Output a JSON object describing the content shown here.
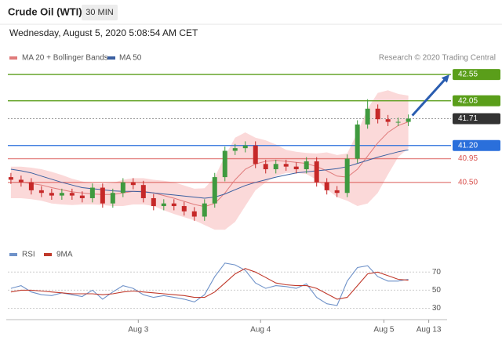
{
  "header": {
    "title": "Crude Oil (WTI)",
    "interval": "30 MIN",
    "timestamp": "Wednesday, August 5, 2020 5:08:54 AM CET",
    "source": "Research © 2020 Trading Central"
  },
  "chart_data": [
    {
      "type": "candlestick",
      "x": [
        0,
        1,
        2,
        3,
        4,
        5,
        6,
        7,
        8,
        9,
        10,
        11,
        12,
        13,
        14,
        15,
        16,
        17,
        18,
        19,
        20,
        21,
        22,
        23,
        24,
        25,
        26,
        27,
        28,
        29,
        30,
        31,
        32,
        33,
        34,
        35,
        36,
        37,
        38,
        39
      ],
      "open": [
        40.6,
        40.55,
        40.5,
        40.35,
        40.3,
        40.25,
        40.3,
        40.25,
        40.2,
        40.4,
        40.1,
        40.3,
        40.5,
        40.45,
        40.2,
        40.05,
        40.1,
        40.05,
        39.95,
        39.85,
        40.1,
        40.6,
        41.1,
        41.15,
        41.2,
        40.85,
        40.75,
        40.85,
        40.8,
        40.75,
        40.9,
        40.5,
        40.35,
        40.3,
        40.95,
        41.6,
        41.9,
        41.7,
        41.65,
        41.65
      ],
      "high": [
        40.68,
        40.63,
        40.58,
        40.43,
        40.38,
        40.38,
        40.38,
        40.33,
        40.48,
        40.48,
        40.38,
        40.58,
        40.58,
        40.53,
        40.28,
        40.18,
        40.18,
        40.13,
        40.03,
        40.18,
        40.68,
        41.18,
        41.23,
        41.28,
        41.28,
        40.93,
        40.93,
        40.93,
        40.88,
        40.98,
        40.98,
        40.58,
        40.43,
        41.03,
        41.68,
        42.08,
        41.98,
        41.78,
        41.73,
        41.79
      ],
      "low": [
        40.47,
        40.42,
        40.27,
        40.22,
        40.17,
        40.17,
        40.17,
        40.12,
        40.12,
        40.02,
        40.02,
        40.22,
        40.37,
        40.12,
        39.97,
        39.97,
        39.97,
        39.87,
        39.77,
        39.77,
        40.02,
        40.52,
        41.02,
        41.07,
        40.77,
        40.67,
        40.67,
        40.72,
        40.67,
        40.67,
        40.42,
        40.27,
        40.22,
        40.22,
        40.87,
        41.52,
        41.62,
        41.57,
        41.57,
        41.57
      ],
      "close": [
        40.55,
        40.5,
        40.35,
        40.3,
        40.25,
        40.3,
        40.25,
        40.2,
        40.4,
        40.1,
        40.3,
        40.5,
        40.45,
        40.2,
        40.05,
        40.1,
        40.05,
        39.95,
        39.85,
        40.1,
        40.6,
        41.1,
        41.15,
        41.2,
        40.85,
        40.75,
        40.85,
        40.8,
        40.75,
        40.9,
        40.5,
        40.35,
        40.3,
        40.95,
        41.6,
        41.9,
        41.7,
        41.65,
        41.65,
        41.71
      ],
      "up_color": "#3f9a3f",
      "down_color": "#c62828",
      "series": [
        {
          "name": "MA 20 + Bollinger Bands",
          "color": "#e07b7b",
          "band_color": "#fbd9d9",
          "values": [
            40.5,
            40.5,
            40.48,
            40.45,
            40.4,
            40.36,
            40.32,
            40.3,
            40.28,
            40.27,
            40.27,
            40.3,
            40.33,
            40.33,
            40.3,
            40.25,
            40.2,
            40.14,
            40.08,
            40.04,
            40.1,
            40.3,
            40.55,
            40.75,
            40.85,
            40.9,
            40.92,
            40.9,
            40.88,
            40.86,
            40.8,
            40.72,
            40.62,
            40.6,
            40.75,
            41.0,
            41.25,
            41.45,
            41.58,
            41.65
          ],
          "upper": [
            40.8,
            40.8,
            40.78,
            40.75,
            40.7,
            40.64,
            40.57,
            40.52,
            40.48,
            40.47,
            40.49,
            40.55,
            40.58,
            40.58,
            40.55,
            40.53,
            40.5,
            40.44,
            40.38,
            40.39,
            40.6,
            41.0,
            41.35,
            41.45,
            41.35,
            41.3,
            41.22,
            41.12,
            41.08,
            41.06,
            41.05,
            41.07,
            41.02,
            41.05,
            41.45,
            41.9,
            42.2,
            42.25,
            42.18,
            42.15
          ],
          "lower": [
            40.2,
            40.2,
            40.18,
            40.15,
            40.1,
            40.08,
            40.07,
            40.08,
            40.08,
            40.07,
            40.05,
            40.05,
            40.08,
            40.08,
            40.05,
            39.97,
            39.9,
            39.84,
            39.78,
            39.69,
            39.6,
            39.6,
            39.75,
            40.05,
            40.35,
            40.5,
            40.62,
            40.68,
            40.68,
            40.66,
            40.55,
            40.37,
            40.22,
            40.15,
            40.05,
            40.1,
            40.3,
            40.65,
            40.98,
            41.15
          ]
        },
        {
          "name": "MA 50",
          "color": "#3a5fa0",
          "values": [
            40.75,
            40.72,
            40.68,
            40.62,
            40.56,
            40.5,
            40.45,
            40.4,
            40.38,
            40.36,
            40.34,
            40.33,
            40.33,
            40.32,
            40.3,
            40.28,
            40.26,
            40.24,
            40.22,
            40.2,
            40.22,
            40.28,
            40.36,
            40.44,
            40.5,
            40.55,
            40.6,
            40.64,
            40.68,
            40.7,
            40.72,
            40.74,
            40.76,
            40.8,
            40.86,
            40.92,
            40.98,
            41.03,
            41.08,
            41.12
          ]
        }
      ],
      "levels": [
        {
          "value": 42.55,
          "label": "42.55",
          "color": "#5a9e1a",
          "style": "box",
          "line": "solid"
        },
        {
          "value": 42.05,
          "label": "42.05",
          "color": "#5a9e1a",
          "style": "box",
          "line": "solid"
        },
        {
          "value": 41.71,
          "label": "41.71",
          "color": "#333333",
          "style": "box",
          "line": "dotted"
        },
        {
          "value": 41.2,
          "label": "41.20",
          "color": "#2a6fdb",
          "style": "box",
          "line": "solid"
        },
        {
          "value": 40.95,
          "label": "40.95",
          "color": "#d9534f",
          "style": "text",
          "line": "solid"
        },
        {
          "value": 40.5,
          "label": "40.50",
          "color": "#d9534f",
          "style": "text",
          "line": "solid"
        }
      ],
      "arrow_color": "#2a5db0",
      "xlim": [
        -0.3,
        42.8
      ],
      "ylim": [
        39.5,
        42.7
      ]
    },
    {
      "type": "line",
      "x": [
        0,
        1,
        2,
        3,
        4,
        5,
        6,
        7,
        8,
        9,
        10,
        11,
        12,
        13,
        14,
        15,
        16,
        17,
        18,
        19,
        20,
        21,
        22,
        23,
        24,
        25,
        26,
        27,
        28,
        29,
        30,
        31,
        32,
        33,
        34,
        35,
        36,
        37,
        38,
        39
      ],
      "series": [
        {
          "name": "RSI",
          "color": "#6f92c9",
          "values": [
            52,
            55,
            48,
            45,
            44,
            47,
            45,
            43,
            50,
            40,
            48,
            55,
            52,
            45,
            42,
            44,
            42,
            40,
            37,
            45,
            65,
            80,
            78,
            72,
            58,
            52,
            55,
            54,
            52,
            57,
            42,
            35,
            33,
            60,
            75,
            77,
            65,
            60,
            60,
            62
          ]
        },
        {
          "name": "9MA",
          "color": "#c0392b",
          "values": [
            48,
            50,
            50,
            49,
            48,
            47,
            46,
            46,
            46,
            45,
            46,
            48,
            49,
            48,
            47,
            46,
            45,
            44,
            42,
            42,
            48,
            58,
            68,
            74,
            70,
            64,
            58,
            56,
            55,
            55,
            52,
            46,
            40,
            42,
            55,
            68,
            70,
            66,
            62,
            61
          ]
        }
      ],
      "xlim": [
        -0.3,
        42.8
      ],
      "ylim": [
        20,
        85
      ],
      "yticks": [
        30,
        50,
        70
      ],
      "grid": true,
      "xticks": [
        {
          "value": 12.5,
          "label": "Aug 3"
        },
        {
          "value": 24.5,
          "label": "Aug 4"
        },
        {
          "value": 36.6,
          "label": "Aug 5"
        },
        {
          "value": 41,
          "label": "Aug 13"
        }
      ]
    }
  ]
}
